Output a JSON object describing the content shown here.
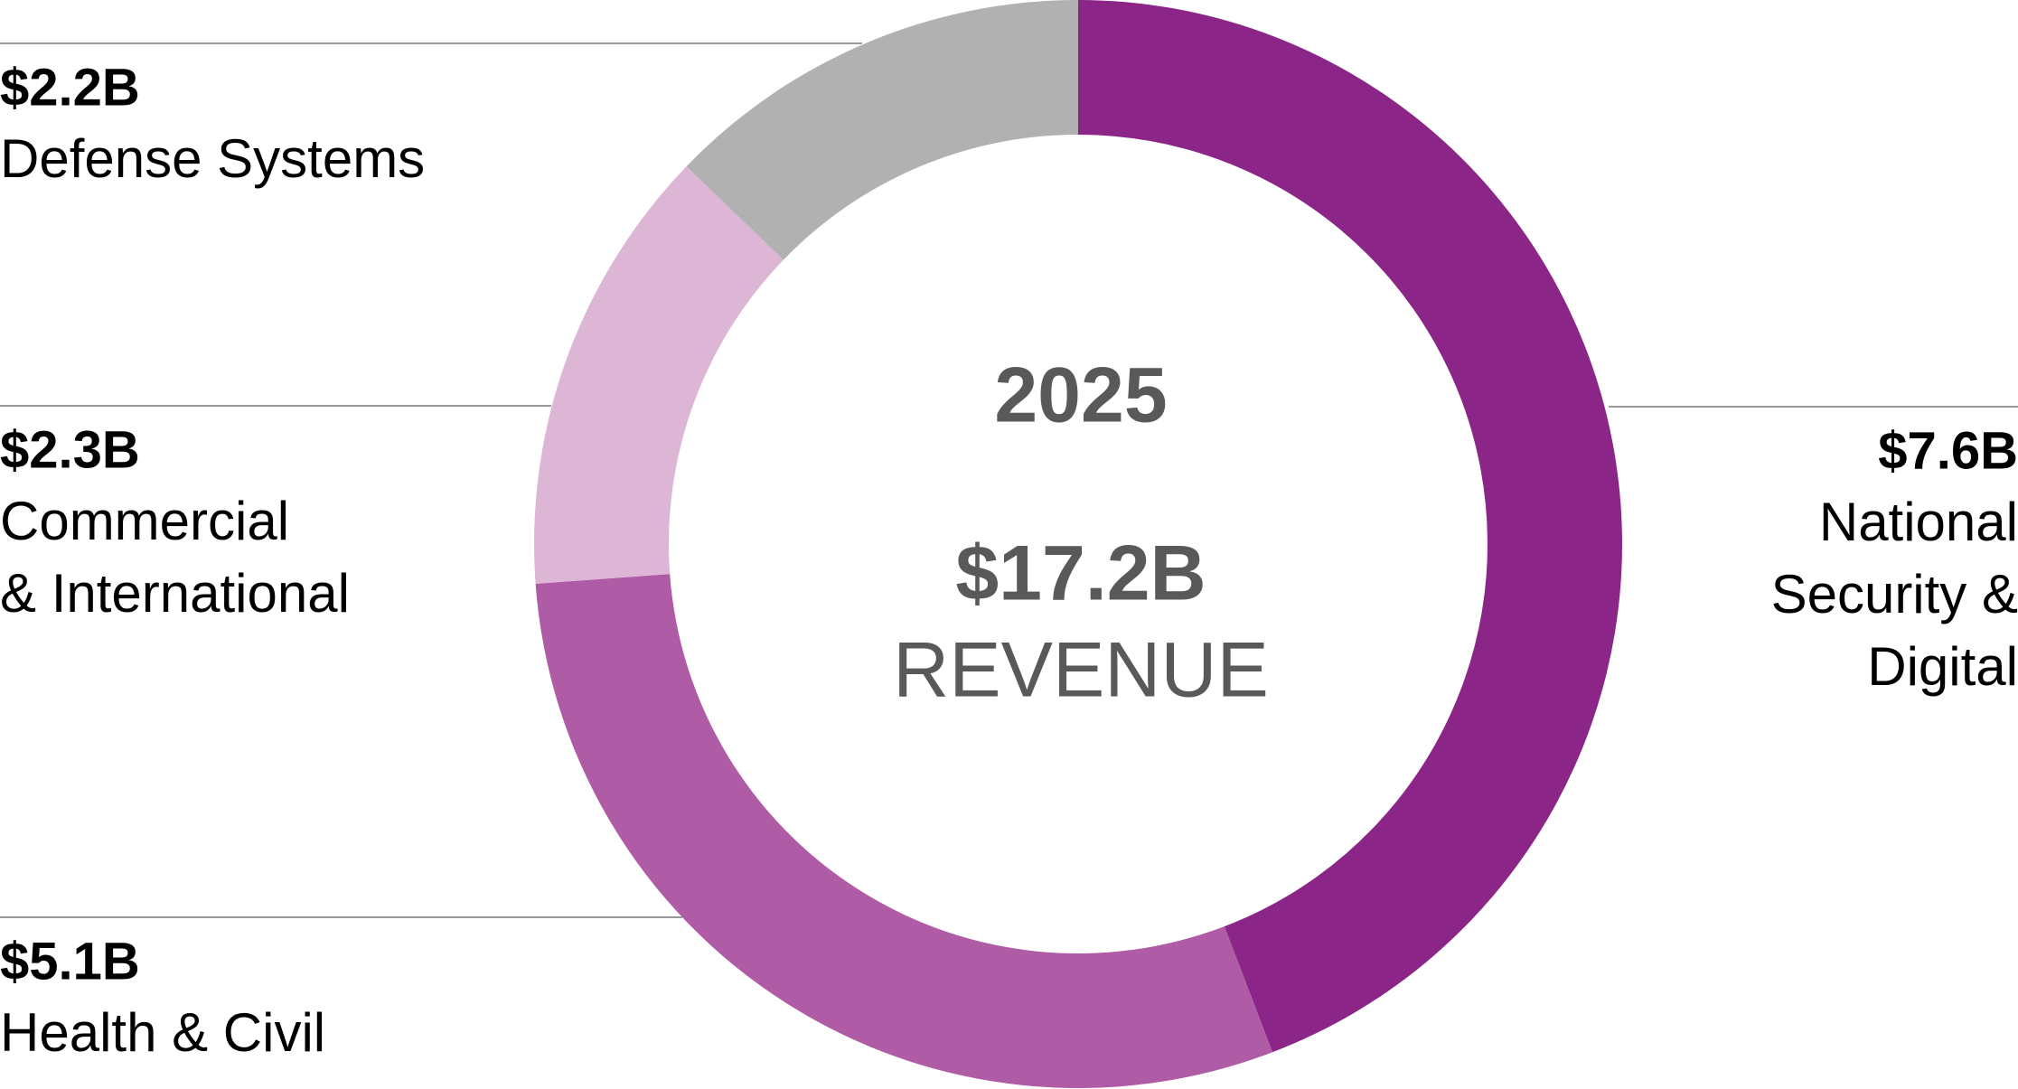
{
  "chart_data": {
    "type": "donut",
    "center_title": "2025",
    "center_value": "$17.2B",
    "center_caption": "REVENUE",
    "categories": [
      [
        "National",
        "Security &",
        "Digital"
      ],
      [
        "Health & Civil"
      ],
      [
        "Commercial",
        "& International"
      ],
      [
        "Defense Systems"
      ]
    ],
    "values": [
      7.6,
      5.1,
      2.3,
      2.2
    ],
    "value_labels": [
      "$7.6B",
      "$5.1B",
      "$2.3B",
      "$2.2B"
    ],
    "colors": [
      "#8b2587",
      "#af5ba5",
      "#ddb6d6",
      "#b1b1b1"
    ]
  }
}
